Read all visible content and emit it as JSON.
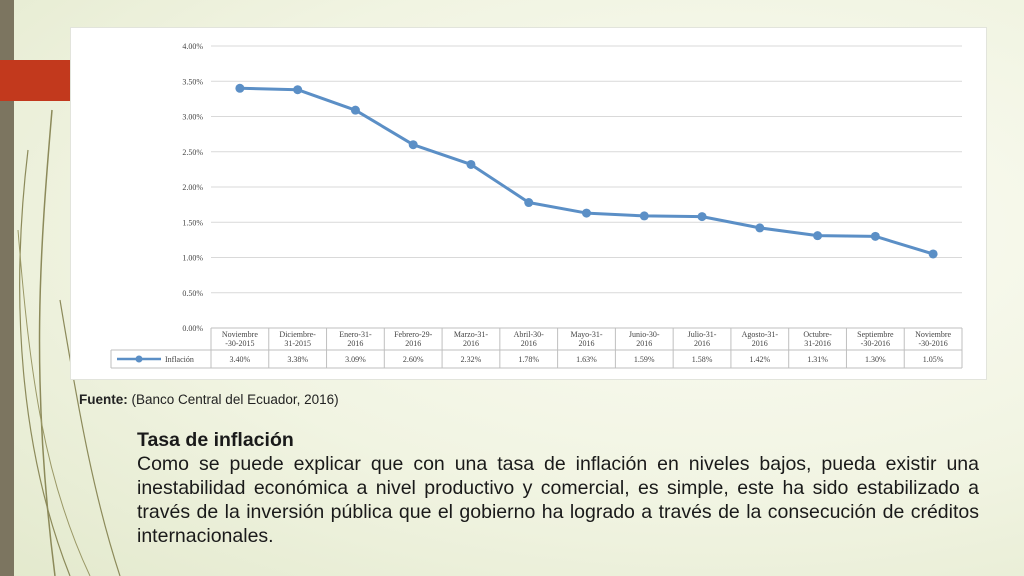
{
  "slide": {
    "source_label": "Fuente:",
    "source_text": "(Banco Central del Ecuador, 2016)",
    "heading": "Tasa de inflación",
    "paragraph": "Como se puede explicar que con una tasa de inflación en niveles bajos, pueda existir una inestabilidad económica a nivel productivo y comercial, es simple, este ha sido estabilizado a través de la inversión pública que el gobierno ha logrado a través de la consecución de créditos internacionales."
  },
  "colors": {
    "series": "#5b8fc6",
    "accent_red": "#c2391d",
    "sidebar": "#7c7560"
  },
  "chart_data": {
    "type": "line",
    "title": "",
    "xlabel": "",
    "ylabel": "",
    "ylim": [
      0,
      4
    ],
    "y_ticks": [
      "0.00%",
      "0.50%",
      "1.00%",
      "1.50%",
      "2.00%",
      "2.50%",
      "3.00%",
      "3.50%",
      "4.00%"
    ],
    "categories": [
      [
        "Noviembre",
        "-30-2015"
      ],
      [
        "Diciembre-",
        "31-2015"
      ],
      [
        "Enero-31-",
        "2016"
      ],
      [
        "Febrero-29-",
        "2016"
      ],
      [
        "Marzo-31-",
        "2016"
      ],
      [
        "Abril-30-",
        "2016"
      ],
      [
        "Mayo-31-",
        "2016"
      ],
      [
        "Junio-30-",
        "2016"
      ],
      [
        "Julio-31-",
        "2016"
      ],
      [
        "Agosto-31-",
        "2016"
      ],
      [
        "Octubre-",
        "31-2016"
      ],
      [
        "Septiembre",
        "-30-2016"
      ],
      [
        "Noviembre",
        "-30-2016"
      ]
    ],
    "series": [
      {
        "name": "Inflación",
        "values": [
          3.4,
          3.38,
          3.09,
          2.6,
          2.32,
          1.78,
          1.63,
          1.59,
          1.58,
          1.42,
          1.31,
          1.3,
          1.05
        ],
        "labels": [
          "3.40%",
          "3.38%",
          "3.09%",
          "2.60%",
          "2.32%",
          "1.78%",
          "1.63%",
          "1.59%",
          "1.58%",
          "1.42%",
          "1.31%",
          "1.30%",
          "1.05%"
        ]
      }
    ],
    "grid": true,
    "legend": "data-table-left"
  }
}
